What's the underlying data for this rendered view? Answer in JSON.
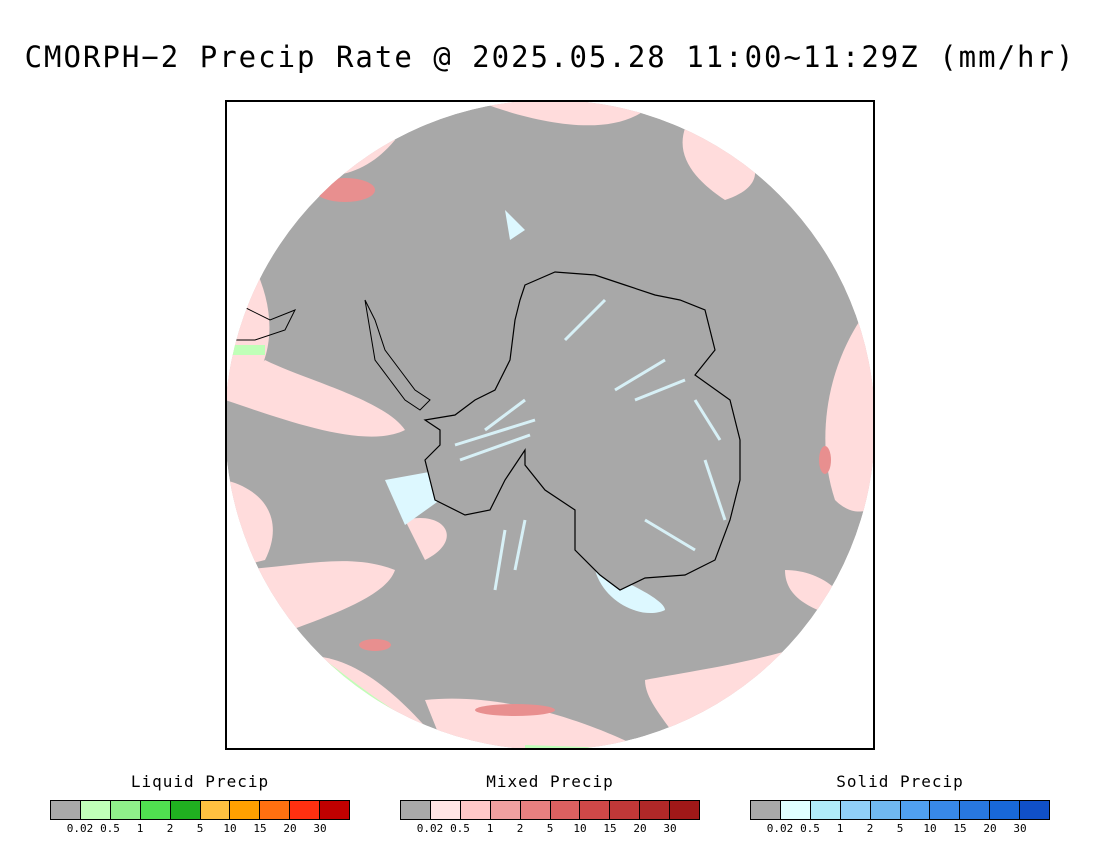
{
  "title": "CMORPH−2 Precip Rate @ 2025.05.28 11:00~11:29Z (mm/hr)",
  "map": {
    "projection": "south-polar-stereographic",
    "colors": {
      "no_precip": "#a8a8a8",
      "mixed_light": "#ffdcdc",
      "mixed_medium": "#e88f8f",
      "solid_light": "#ddf8ff",
      "liquid_light": "#c0ffb8",
      "coastline": "#000000"
    }
  },
  "legends": [
    {
      "title": "Liquid Precip",
      "colors": [
        "#a8a8a8",
        "#c0ffb8",
        "#8ff08a",
        "#50e050",
        "#20b020",
        "#ffc040",
        "#ffa000",
        "#ff7010",
        "#ff3010",
        "#c00000"
      ],
      "ticks": [
        "0.02",
        "0.5",
        "1",
        "2",
        "5",
        "10",
        "15",
        "20",
        "30"
      ]
    },
    {
      "title": "Mixed Precip",
      "colors": [
        "#a8a8a8",
        "#ffe4e4",
        "#ffc8c8",
        "#f0a0a0",
        "#e88080",
        "#dc6060",
        "#d04848",
        "#c03838",
        "#b02828",
        "#a01818"
      ],
      "ticks": [
        "0.02",
        "0.5",
        "1",
        "2",
        "5",
        "10",
        "15",
        "20",
        "30"
      ]
    },
    {
      "title": "Solid Precip",
      "colors": [
        "#a8a8a8",
        "#e0ffff",
        "#b0ecfa",
        "#90d0f8",
        "#70b8f0",
        "#50a0f0",
        "#3888e8",
        "#2878e0",
        "#1868d8",
        "#1050c8"
      ],
      "ticks": [
        "0.02",
        "0.5",
        "1",
        "2",
        "5",
        "10",
        "15",
        "20",
        "30"
      ]
    }
  ]
}
